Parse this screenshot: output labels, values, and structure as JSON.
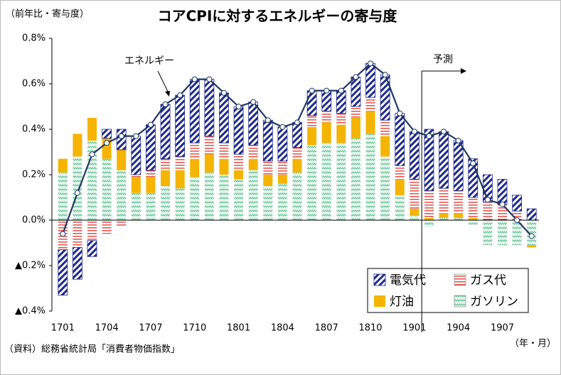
{
  "chart_data": {
    "type": "stacked_bar_line",
    "title": "コアCPIに対するエネルギーの寄与度",
    "y_axis_label": "（前年比・寄与度）",
    "x_axis_label": "（年・月）",
    "source": "（資料）総務省統計局「消費者物価指数」",
    "forecast_label": "予測",
    "categories": [
      "1701",
      null,
      null,
      "1704",
      null,
      null,
      "1707",
      null,
      null,
      "1710",
      null,
      null,
      "1801",
      null,
      null,
      "1804",
      null,
      null,
      "1807",
      null,
      null,
      "1810",
      null,
      null,
      "1901",
      null,
      null,
      "1904",
      null,
      null,
      "1907",
      null,
      null
    ],
    "ylim": [
      -0.4,
      0.8
    ],
    "yticks": [
      {
        "value": 0.8,
        "label": "0.8%"
      },
      {
        "value": 0.6,
        "label": "0.6%"
      },
      {
        "value": 0.4,
        "label": "0.4%"
      },
      {
        "value": 0.2,
        "label": "0.2%"
      },
      {
        "value": 0,
        "label": "0.0%"
      },
      {
        "value": -0.2,
        "label": "▲0.2%"
      },
      {
        "value": -0.4,
        "label": "▲0.4%"
      }
    ],
    "series": [
      {
        "name": "ガソリン",
        "color": "#5fbf8f",
        "pattern": "wave",
        "values": [
          0.21,
          0.28,
          0.35,
          0.27,
          0.22,
          0.12,
          0.12,
          0.15,
          0.14,
          0.19,
          0.21,
          0.2,
          0.18,
          0.22,
          0.15,
          0.16,
          0.21,
          0.33,
          0.34,
          0.34,
          0.36,
          0.38,
          0.28,
          0.11,
          0.02,
          -0.03,
          0.01,
          0.01,
          -0.02,
          -0.11,
          -0.11,
          -0.11,
          -0.11
        ]
      },
      {
        "name": "灯油",
        "color": "#f5b400",
        "pattern": "solid",
        "values": [
          0.06,
          0.1,
          0.1,
          0.09,
          0.09,
          0.07,
          0.07,
          0.07,
          0.08,
          0.08,
          0.08,
          0.07,
          0.04,
          0.05,
          0.05,
          0.04,
          0.06,
          0.08,
          0.09,
          0.08,
          0.09,
          0.1,
          0.09,
          0.07,
          0.03,
          0.01,
          0.02,
          0.02,
          0.01,
          0,
          0,
          0,
          -0.01
        ]
      },
      {
        "name": "ガス代",
        "color": "#e0504a",
        "pattern": "horizontal",
        "values": [
          -0.13,
          -0.12,
          -0.09,
          -0.06,
          -0.03,
          0.01,
          0.03,
          0.05,
          0.06,
          0.07,
          0.08,
          0.07,
          0.07,
          0.06,
          0.06,
          0.06,
          0.05,
          0.05,
          0.05,
          0.05,
          0.05,
          0.06,
          0.07,
          0.06,
          0.13,
          0.12,
          0.11,
          0.1,
          0.09,
          0.08,
          0.07,
          0.04,
          0
        ]
      },
      {
        "name": "電気代",
        "color": "#1f2a8a",
        "pattern": "diagonal",
        "values": [
          -0.2,
          -0.14,
          -0.07,
          0.04,
          0.09,
          0.17,
          0.2,
          0.24,
          0.27,
          0.28,
          0.25,
          0.22,
          0.21,
          0.19,
          0.18,
          0.15,
          0.11,
          0.11,
          0.09,
          0.1,
          0.13,
          0.15,
          0.2,
          0.23,
          0.21,
          0.27,
          0.25,
          0.22,
          0.17,
          0.12,
          0.11,
          0.07,
          0.05
        ]
      }
    ],
    "line": {
      "name": "エネルギー",
      "color": "#1f3864",
      "values": [
        -0.06,
        0.12,
        0.29,
        0.34,
        0.37,
        0.37,
        0.42,
        0.51,
        0.55,
        0.62,
        0.62,
        0.56,
        0.5,
        0.52,
        0.44,
        0.41,
        0.43,
        0.57,
        0.57,
        0.57,
        0.63,
        0.69,
        0.64,
        0.47,
        0.39,
        0.37,
        0.39,
        0.35,
        0.25,
        0.09,
        0.07,
        0,
        -0.07
      ]
    }
  }
}
